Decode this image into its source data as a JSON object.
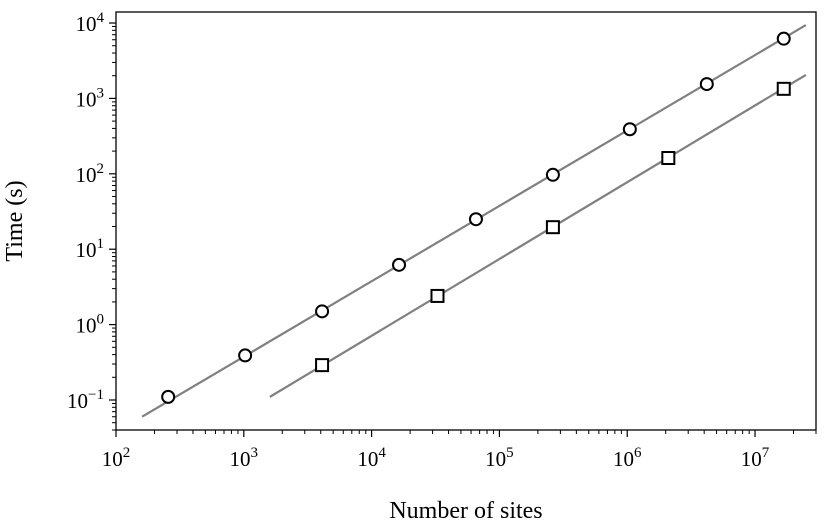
{
  "chart_data": {
    "type": "scatter",
    "title": "",
    "xlabel": "Number of sites",
    "ylabel": "Time (s)",
    "xscale": "log",
    "yscale": "log",
    "xlim": [
      100,
      30000000
    ],
    "ylim": [
      0.04,
      14000
    ],
    "grid": false,
    "legend": "none",
    "x_ticks": [
      100,
      1000,
      10000,
      100000,
      1000000,
      10000000
    ],
    "x_tick_labels": [
      {
        "base": "10",
        "exp": "2"
      },
      {
        "base": "10",
        "exp": "3"
      },
      {
        "base": "10",
        "exp": "4"
      },
      {
        "base": "10",
        "exp": "5"
      },
      {
        "base": "10",
        "exp": "6"
      },
      {
        "base": "10",
        "exp": "7"
      }
    ],
    "y_ticks": [
      0.1,
      1,
      10,
      100,
      1000,
      10000
    ],
    "y_tick_labels": [
      {
        "base": "10",
        "exp": "−1"
      },
      {
        "base": "10",
        "exp": "0"
      },
      {
        "base": "10",
        "exp": "1"
      },
      {
        "base": "10",
        "exp": "2"
      },
      {
        "base": "10",
        "exp": "3"
      },
      {
        "base": "10",
        "exp": "4"
      }
    ],
    "series": [
      {
        "marker": "circle",
        "x": [
          256,
          1024,
          4096,
          16384,
          65536,
          262144,
          1048576,
          4194304,
          16777216
        ],
        "y": [
          0.11,
          0.39,
          1.5,
          6.2,
          25,
          97,
          390,
          1550,
          6200
        ],
        "fit": {
          "x": [
            160,
            25000000
          ],
          "y": [
            0.06,
            9400
          ]
        }
      },
      {
        "marker": "square",
        "x": [
          4096,
          32768,
          262144,
          2097152,
          16777216
        ],
        "y": [
          0.29,
          2.4,
          19.6,
          162,
          1340
        ],
        "fit": {
          "x": [
            1600,
            25000000
          ],
          "y": [
            0.11,
            2050
          ]
        }
      }
    ],
    "colors": {
      "markers": "#000000",
      "fit_lines": "#808080",
      "axes": "#000000"
    }
  }
}
